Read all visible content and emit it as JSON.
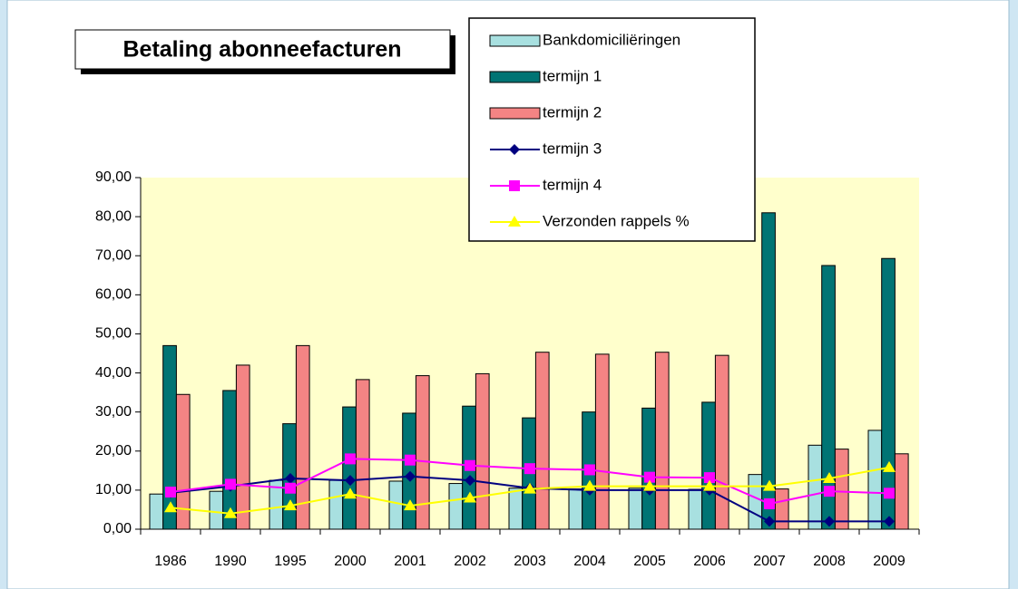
{
  "chart_data": {
    "type": "bar",
    "title": "Betaling abonneefacturen",
    "categories": [
      "1986",
      "1990",
      "1995",
      "2000",
      "2001",
      "2002",
      "2003",
      "2004",
      "2005",
      "2006",
      "2007",
      "2008",
      "2009"
    ],
    "series": [
      {
        "name": "Bankdomiciliëringen",
        "type": "bar",
        "color": "#a8e0e0",
        "values": [
          9,
          9.7,
          12.5,
          12.5,
          12.3,
          11.7,
          10.5,
          10.3,
          10.5,
          10.2,
          14,
          21.5,
          25.3
        ]
      },
      {
        "name": "termijn 1",
        "type": "bar",
        "color": "#007474",
        "values": [
          47,
          35.5,
          27,
          31.3,
          29.7,
          31.5,
          28.5,
          30,
          31,
          32.5,
          81,
          67.5,
          69.3
        ]
      },
      {
        "name": "termijn 2",
        "type": "bar",
        "color": "#f48484",
        "values": [
          34.5,
          42,
          47,
          38.3,
          39.3,
          39.8,
          45.3,
          44.8,
          45.3,
          44.5,
          10.3,
          20.5,
          19.3
        ]
      },
      {
        "name": "termijn 3",
        "type": "line",
        "marker": "diamond",
        "color": "#000080",
        "values": [
          9.3,
          11,
          13,
          12.5,
          13.5,
          12.5,
          10.5,
          10,
          10,
          10,
          2,
          2,
          2
        ]
      },
      {
        "name": "termijn 4",
        "type": "line",
        "marker": "square",
        "color": "#ff00ff",
        "values": [
          9.5,
          11.5,
          10.5,
          18,
          17.7,
          16.3,
          15.5,
          15.2,
          13.3,
          13.2,
          6.5,
          9.7,
          9.2
        ]
      },
      {
        "name": "Verzonden rappels %",
        "type": "line",
        "marker": "triangle",
        "color": "#ffff00",
        "values": [
          5.5,
          4,
          6,
          9,
          6,
          8,
          10.3,
          11,
          11,
          11,
          11,
          13,
          15.8
        ]
      }
    ],
    "ylim": [
      0,
      90
    ],
    "yticks": [
      {
        "value": 0,
        "label": "0,00"
      },
      {
        "value": 10,
        "label": "10,00"
      },
      {
        "value": 20,
        "label": "20,00"
      },
      {
        "value": 30,
        "label": "30,00"
      },
      {
        "value": 40,
        "label": "40,00"
      },
      {
        "value": 50,
        "label": "50,00"
      },
      {
        "value": 60,
        "label": "60,00"
      },
      {
        "value": 70,
        "label": "70,00"
      },
      {
        "value": 80,
        "label": "80,00"
      },
      {
        "value": 90,
        "label": "90,00"
      }
    ],
    "plot_background": "#ffffcc"
  }
}
